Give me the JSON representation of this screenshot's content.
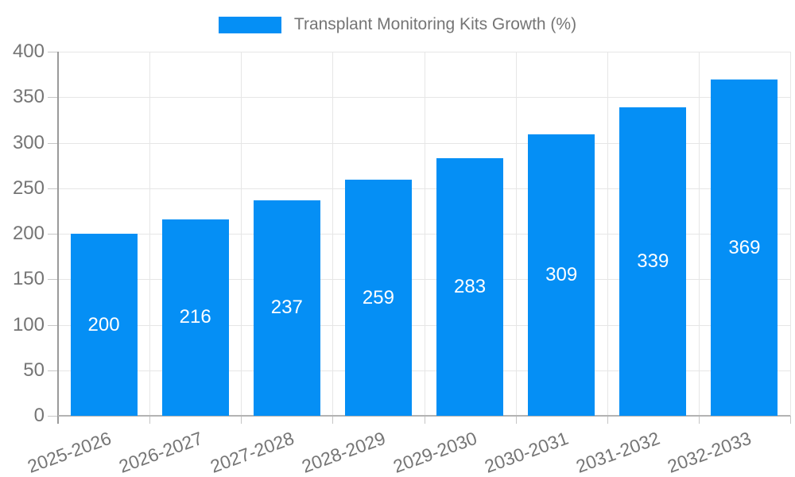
{
  "chart_data": {
    "type": "bar",
    "title": "Transplant Monitoring Kits Growth (%)",
    "legend_position": "top",
    "categories": [
      "2025-2026",
      "2026-2027",
      "2027-2028",
      "2028-2029",
      "2029-2030",
      "2030-2031",
      "2031-2032",
      "2032-2033"
    ],
    "values": [
      200,
      216,
      237,
      259,
      283,
      309,
      339,
      369
    ],
    "bar_color": "#058ff5",
    "value_label_color": "#ffffff",
    "xlabel": "",
    "ylabel": "",
    "ylim": [
      0,
      400
    ],
    "yticks": [
      0,
      50,
      100,
      150,
      200,
      250,
      300,
      350,
      400
    ],
    "grid": true
  }
}
